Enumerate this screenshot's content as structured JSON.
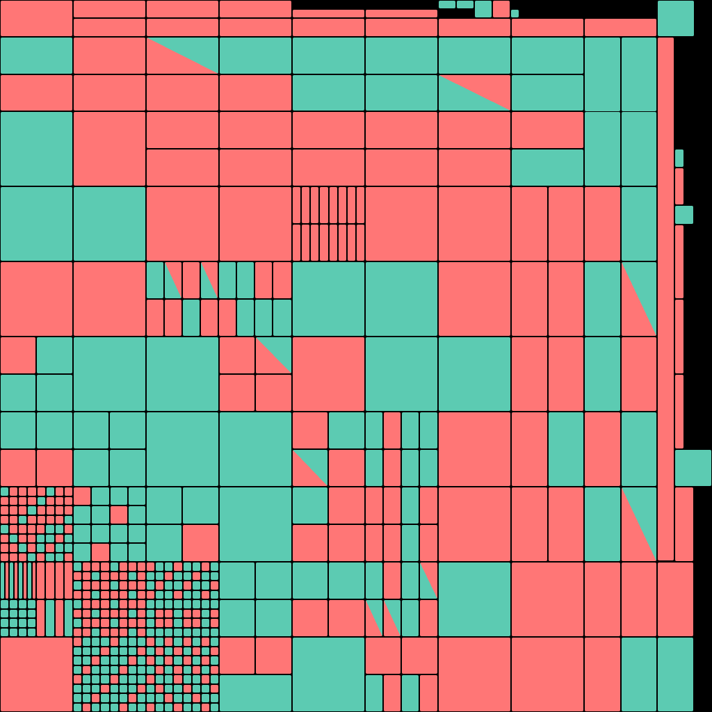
{
  "colors": {
    "a": "#ff7676",
    "b": "#5ccbb2",
    "background": "#000000"
  },
  "palette_names": {
    "a": "coral",
    "b": "teal"
  }
}
